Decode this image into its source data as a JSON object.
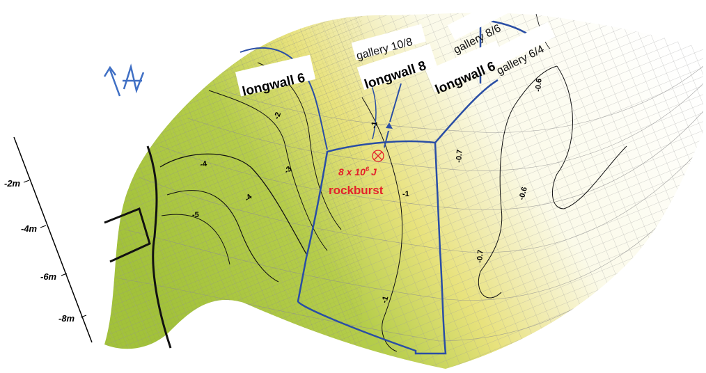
{
  "colors": {
    "panel_blue": "#2a4ea5",
    "rockburst_red": "#e4202a",
    "mesh_gray": "#a9a9a9",
    "subsidence_green": "#a8c53f",
    "subsidence_yellow": "#ece58c"
  },
  "labels": {
    "longwall_6_left": "longwall 6",
    "longwall_8": "longwall 8",
    "longwall_6_right": "longwall 6",
    "gallery_10_8": "gallery 10/8",
    "gallery_8_6": "gallery 8/6",
    "gallery_6_4": "gallery 6/4"
  },
  "rockburst": {
    "energy_prefix": "8 x 10",
    "energy_exponent": "6",
    "energy_unit": "J",
    "label": "rockburst",
    "marker_icon": "crossed-circle-icon"
  },
  "depth_scale": {
    "ticks": [
      "-2m",
      "-4m",
      "-6m",
      "-8m"
    ]
  },
  "contour_labels": [
    "-2",
    "-4",
    "-5",
    "-4",
    "-3",
    "-2",
    "-1",
    "-1",
    "-1",
    "-0.7",
    "-0.6",
    "-0.7",
    "-0.6",
    "-0.7"
  ],
  "north_arrow_icon": "north-arrow-icon"
}
